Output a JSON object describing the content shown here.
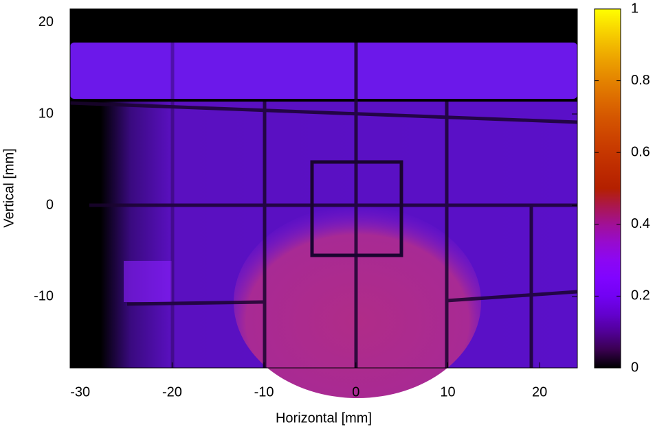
{
  "chart_data": {
    "type": "heatmap",
    "xlabel": "Horizontal [mm]",
    "ylabel": "Vertical [mm]",
    "xlim": [
      -31.1,
      24.1
    ],
    "xticks": [
      -30,
      -20,
      -10,
      0,
      10,
      20
    ],
    "ylim": [
      -17.8,
      21.5
    ],
    "yticks": [
      -10,
      0,
      10,
      20
    ],
    "zlim": [
      0,
      1
    ],
    "zticks": [
      0,
      0.2,
      0.4,
      0.6,
      0.8,
      1
    ]
  }
}
